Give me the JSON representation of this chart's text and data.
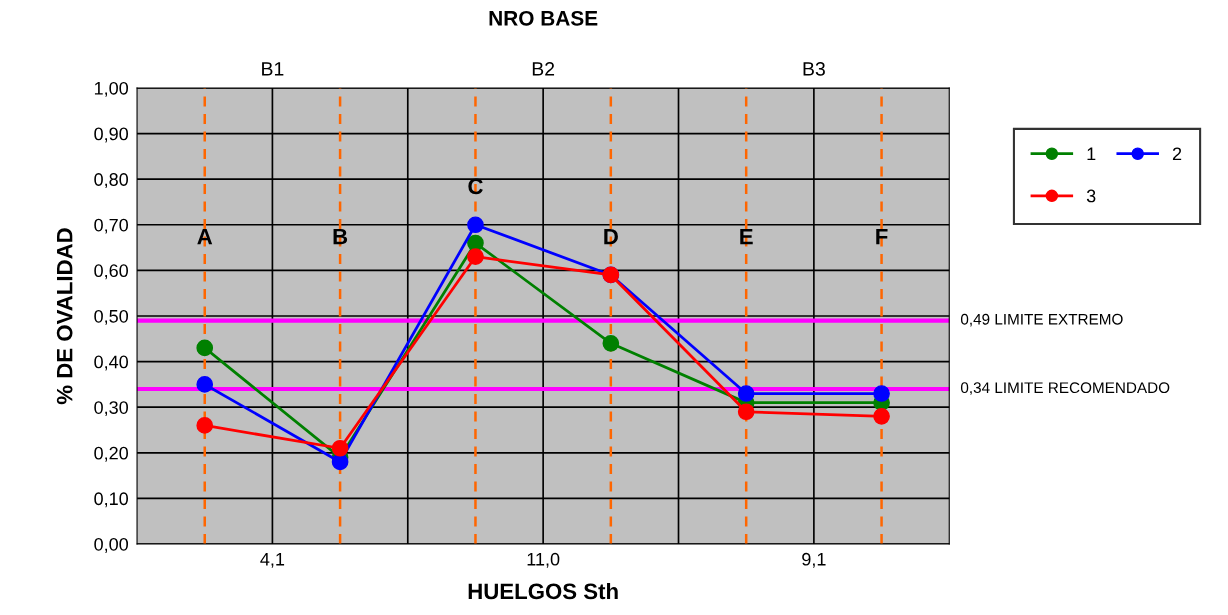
{
  "chart_data": {
    "type": "line",
    "title": "NRO BASE",
    "xlabel": "HUELGOS Sth",
    "ylabel": "% DE OVALIDAD",
    "categories": [
      null,
      null,
      null,
      null,
      null,
      null
    ],
    "series": [
      {
        "name": "1",
        "color": "#008000",
        "values": [
          0.43,
          0.19,
          0.66,
          0.44,
          0.31,
          0.31
        ]
      },
      {
        "name": "2",
        "color": "#0000ff",
        "values": [
          0.35,
          0.18,
          0.7,
          0.59,
          0.33,
          0.33
        ]
      },
      {
        "name": "3",
        "color": "#ff0000",
        "values": [
          0.26,
          0.21,
          0.63,
          0.59,
          0.29,
          0.28
        ]
      }
    ],
    "ylim": [
      0,
      1
    ],
    "yticks": [
      {
        "value": 0,
        "label": "0,00"
      },
      {
        "value": 0.1,
        "label": "0,10"
      },
      {
        "value": 0.2,
        "label": "0,20"
      },
      {
        "value": 0.3,
        "label": "0,30"
      },
      {
        "value": 0.4,
        "label": "0,40"
      },
      {
        "value": 0.5,
        "label": "0,50"
      },
      {
        "value": 0.6,
        "label": "0,60"
      },
      {
        "value": 0.7,
        "label": "0,70"
      },
      {
        "value": 0.8,
        "label": "0,80"
      },
      {
        "value": 0.9,
        "label": "0,90"
      },
      {
        "value": 1,
        "label": "1,00"
      }
    ],
    "ref_lines": [
      {
        "axis": "y",
        "value": 0.49,
        "label": "0,49 LIMITE EXTREMO",
        "color": "#ff00ff",
        "line_style": "solid"
      },
      {
        "axis": "y",
        "value": 0.34,
        "label": "0,34 LIMITE RECOMENDADO",
        "color": "#ff00ff",
        "line_style": "solid"
      }
    ],
    "annotations": [
      "A",
      "B",
      "C",
      "D",
      "E",
      "F",
      "B1",
      "B2",
      "B3",
      "4,1",
      "11,0",
      "9,1"
    ],
    "grid": true,
    "legend": "top right",
    "marker": "circle",
    "line_style": "solid"
  }
}
